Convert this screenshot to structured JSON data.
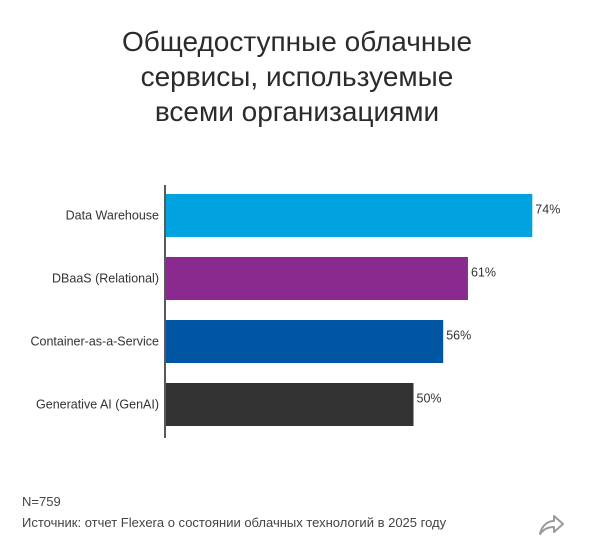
{
  "header": {
    "title_lines": [
      "Общедоступные облачные",
      "сервисы, используемые",
      "всеми организациями"
    ]
  },
  "chart_data": {
    "type": "bar",
    "orientation": "horizontal",
    "title": "Общедоступные облачные сервисы, используемые всеми организациями",
    "categories": [
      "Data Warehouse",
      "DBaaS (Relational)",
      "Container-as-a-Service",
      "Generative AI (GenAI)"
    ],
    "values": [
      74,
      61,
      56,
      50
    ],
    "value_labels": [
      "74%",
      "61%",
      "56%",
      "50%"
    ],
    "unit": "%",
    "colors": [
      "#00a3e0",
      "#8a2a8f",
      "#0056a3",
      "#333333"
    ],
    "xlim": [
      0,
      100
    ],
    "grid": false,
    "legend": "none"
  },
  "footer": {
    "n": "N=759",
    "source": "Источник: отчет Flexera о состоянии облачных технологий в 2025 году"
  },
  "icons": {
    "share": "share-arrow-icon"
  }
}
